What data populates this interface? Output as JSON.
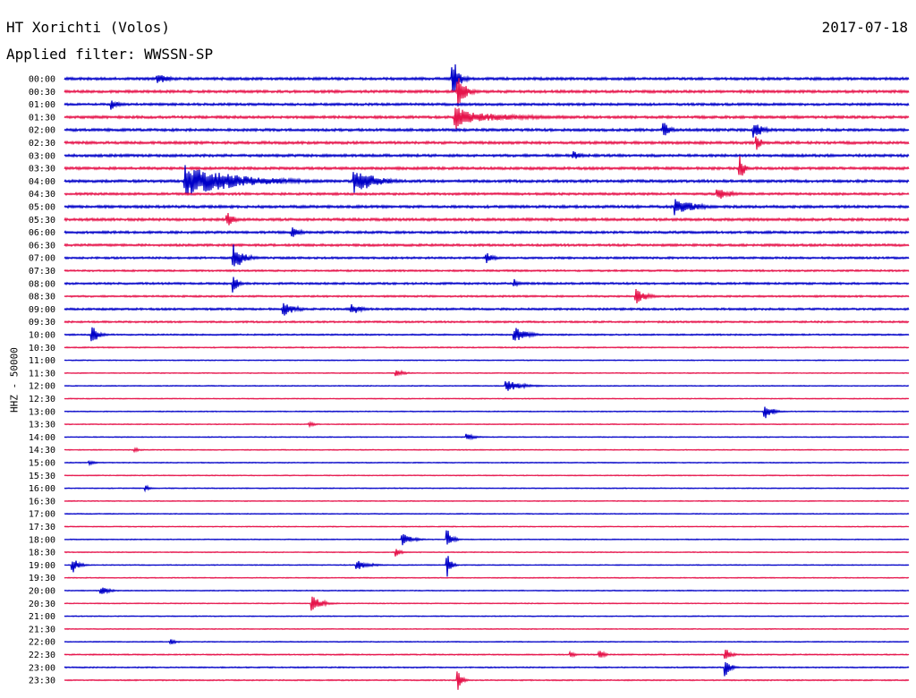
{
  "header": {
    "station": "HT Xorichti (Volos)",
    "date": "2017-07-18",
    "filter": "Applied filter: WWSSN-SP"
  },
  "colors": {
    "even_rows": "#0000c8",
    "odd_rows": "#e6144b",
    "background": "#ffffff"
  },
  "chart_data": {
    "type": "line",
    "title": "HT Xorichti (Volos)",
    "subtitle": "Applied filter: WWSSN-SP",
    "ylabel": "HHZ - 50000",
    "xlabel": "",
    "grid": false,
    "legend": "none",
    "row_duration_minutes": 30,
    "tick_labels": [
      "00:00",
      "00:30",
      "01:00",
      "01:30",
      "02:00",
      "02:30",
      "03:00",
      "03:30",
      "04:00",
      "04:30",
      "05:00",
      "05:30",
      "06:00",
      "06:30",
      "07:00",
      "07:30",
      "08:00",
      "08:30",
      "09:00",
      "09:30",
      "10:00",
      "10:30",
      "11:00",
      "11:30",
      "12:00",
      "12:30",
      "13:00",
      "13:30",
      "14:00",
      "14:30",
      "15:00",
      "15:30",
      "16:00",
      "16:30",
      "17:00",
      "17:30",
      "18:00",
      "18:30",
      "19:00",
      "19:30",
      "20:00",
      "20:30",
      "21:00",
      "21:30",
      "22:00",
      "22:30",
      "23:00",
      "23:30"
    ],
    "noise_level": [
      0.9,
      0.9,
      0.8,
      0.9,
      0.9,
      0.9,
      0.9,
      0.9,
      0.9,
      0.8,
      0.9,
      0.9,
      0.8,
      0.8,
      0.7,
      0.6,
      0.7,
      0.6,
      0.7,
      0.6,
      0.5,
      0.4,
      0.3,
      0.3,
      0.3,
      0.3,
      0.3,
      0.3,
      0.3,
      0.3,
      0.3,
      0.3,
      0.3,
      0.3,
      0.3,
      0.3,
      0.3,
      0.3,
      0.3,
      0.3,
      0.3,
      0.3,
      0.3,
      0.3,
      0.3,
      0.4,
      0.4,
      0.4
    ],
    "events": [
      {
        "row": 0,
        "minute": 3.3,
        "amplitude": 7,
        "duration": 1.2
      },
      {
        "row": 0,
        "minute": 13.8,
        "amplitude": 28,
        "duration": 0.6
      },
      {
        "row": 1,
        "minute": 14.0,
        "amplitude": 18,
        "duration": 0.8
      },
      {
        "row": 2,
        "minute": 1.7,
        "amplitude": 6,
        "duration": 0.6
      },
      {
        "row": 3,
        "minute": 13.9,
        "amplitude": 14,
        "duration": 1.5
      },
      {
        "row": 3,
        "minute": 14.3,
        "amplitude": 6,
        "duration": 6.0
      },
      {
        "row": 4,
        "minute": 21.3,
        "amplitude": 12,
        "duration": 0.6
      },
      {
        "row": 4,
        "minute": 24.5,
        "amplitude": 10,
        "duration": 1.0
      },
      {
        "row": 5,
        "minute": 24.6,
        "amplitude": 8,
        "duration": 0.6
      },
      {
        "row": 6,
        "minute": 18.1,
        "amplitude": 5,
        "duration": 0.8
      },
      {
        "row": 7,
        "minute": 24.0,
        "amplitude": 14,
        "duration": 0.5
      },
      {
        "row": 8,
        "minute": 4.3,
        "amplitude": 18,
        "duration": 5.5
      },
      {
        "row": 8,
        "minute": 10.3,
        "amplitude": 16,
        "duration": 2.0
      },
      {
        "row": 9,
        "minute": 23.2,
        "amplitude": 7,
        "duration": 1.5
      },
      {
        "row": 10,
        "minute": 21.7,
        "amplitude": 10,
        "duration": 2.0
      },
      {
        "row": 11,
        "minute": 5.8,
        "amplitude": 10,
        "duration": 0.6
      },
      {
        "row": 12,
        "minute": 8.1,
        "amplitude": 8,
        "duration": 0.8
      },
      {
        "row": 14,
        "minute": 6.0,
        "amplitude": 16,
        "duration": 1.0
      },
      {
        "row": 14,
        "minute": 15.0,
        "amplitude": 6,
        "duration": 0.8
      },
      {
        "row": 16,
        "minute": 6.0,
        "amplitude": 12,
        "duration": 0.5
      },
      {
        "row": 16,
        "minute": 16.0,
        "amplitude": 5,
        "duration": 0.6
      },
      {
        "row": 17,
        "minute": 20.3,
        "amplitude": 10,
        "duration": 1.0
      },
      {
        "row": 18,
        "minute": 7.8,
        "amplitude": 8,
        "duration": 1.2
      },
      {
        "row": 18,
        "minute": 10.2,
        "amplitude": 7,
        "duration": 1.0
      },
      {
        "row": 20,
        "minute": 1.0,
        "amplitude": 12,
        "duration": 0.6
      },
      {
        "row": 20,
        "minute": 16.0,
        "amplitude": 9,
        "duration": 1.2
      },
      {
        "row": 23,
        "minute": 11.8,
        "amplitude": 4,
        "duration": 0.8
      },
      {
        "row": 24,
        "minute": 15.7,
        "amplitude": 7,
        "duration": 1.5
      },
      {
        "row": 26,
        "minute": 24.9,
        "amplitude": 8,
        "duration": 0.8
      },
      {
        "row": 27,
        "minute": 8.7,
        "amplitude": 3,
        "duration": 0.6
      },
      {
        "row": 28,
        "minute": 14.3,
        "amplitude": 4,
        "duration": 0.8
      },
      {
        "row": 29,
        "minute": 2.5,
        "amplitude": 3,
        "duration": 0.5
      },
      {
        "row": 30,
        "minute": 0.9,
        "amplitude": 3,
        "duration": 0.5
      },
      {
        "row": 32,
        "minute": 2.9,
        "amplitude": 3,
        "duration": 0.5
      },
      {
        "row": 36,
        "minute": 12.0,
        "amplitude": 7,
        "duration": 1.0
      },
      {
        "row": 36,
        "minute": 13.6,
        "amplitude": 12,
        "duration": 0.5
      },
      {
        "row": 37,
        "minute": 11.8,
        "amplitude": 5,
        "duration": 0.5
      },
      {
        "row": 38,
        "minute": 0.3,
        "amplitude": 9,
        "duration": 0.6
      },
      {
        "row": 38,
        "minute": 10.4,
        "amplitude": 6,
        "duration": 1.2
      },
      {
        "row": 38,
        "minute": 13.6,
        "amplitude": 14,
        "duration": 0.4
      },
      {
        "row": 40,
        "minute": 1.3,
        "amplitude": 5,
        "duration": 0.8
      },
      {
        "row": 41,
        "minute": 8.8,
        "amplitude": 9,
        "duration": 1.0
      },
      {
        "row": 44,
        "minute": 3.8,
        "amplitude": 3,
        "duration": 0.6
      },
      {
        "row": 45,
        "minute": 18.0,
        "amplitude": 5,
        "duration": 0.4
      },
      {
        "row": 45,
        "minute": 19.0,
        "amplitude": 6,
        "duration": 0.5
      },
      {
        "row": 45,
        "minute": 23.5,
        "amplitude": 8,
        "duration": 0.5
      },
      {
        "row": 46,
        "minute": 23.5,
        "amplitude": 10,
        "duration": 0.5
      },
      {
        "row": 47,
        "minute": 14.0,
        "amplitude": 12,
        "duration": 0.4
      }
    ]
  }
}
